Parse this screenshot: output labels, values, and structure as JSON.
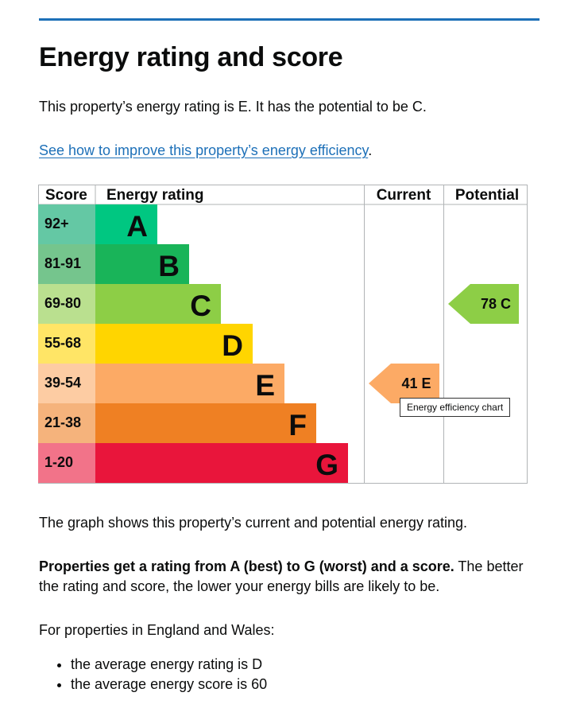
{
  "page": {
    "title": "Energy rating and score",
    "lead": "This property’s energy rating is E. It has the potential to be C.",
    "link_text": "See how to improve this property’s energy efficiency",
    "link_trailing": ".",
    "graph_caption": "The graph shows this property’s current and potential energy rating.",
    "ratings_bold": "Properties get a rating from A (best) to G (worst) and a score.",
    "ratings_rest": " The better the rating and score, the lower your energy bills are likely to be.",
    "england_wales": "For properties in England and Wales:",
    "bullets": [
      "the average energy rating is D",
      "the average energy score is 60"
    ]
  },
  "tooltip": "Energy efficiency chart",
  "chart_data": {
    "type": "bar",
    "headers": {
      "score": "Score",
      "rating": "Energy rating",
      "current": "Current",
      "potential": "Potential"
    },
    "bands": [
      {
        "letter": "A",
        "score_range": "92+",
        "color": "#00c781",
        "light": "#64c8a4"
      },
      {
        "letter": "B",
        "score_range": "81-91",
        "color": "#19b459",
        "light": "#75c58d"
      },
      {
        "letter": "C",
        "score_range": "69-80",
        "color": "#8dce46",
        "light": "#bae08f"
      },
      {
        "letter": "D",
        "score_range": "55-68",
        "color": "#ffd500",
        "light": "#ffe566"
      },
      {
        "letter": "E",
        "score_range": "39-54",
        "color": "#fcaa65",
        "light": "#fdcca3"
      },
      {
        "letter": "F",
        "score_range": "21-38",
        "color": "#ef8023",
        "light": "#f5b37c"
      },
      {
        "letter": "G",
        "score_range": "1-20",
        "color": "#e9153b",
        "light": "#f27389"
      }
    ],
    "current": {
      "score": 41,
      "band": "E",
      "label": "41  E"
    },
    "potential": {
      "score": 78,
      "band": "C",
      "label": "78  C"
    }
  }
}
